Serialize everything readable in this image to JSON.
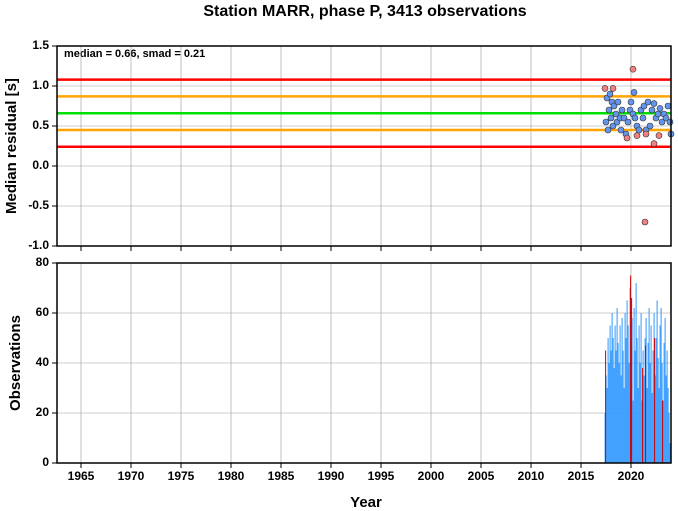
{
  "chart_data": [
    {
      "type": "scatter",
      "title": "Station MARR, phase P, 3413 observations",
      "y_label": "Median residual [s]",
      "annotation": "median = 0.66, smad = 0.21",
      "xlim": [
        1962.6,
        2024
      ],
      "xticks": [
        1965,
        1970,
        1975,
        1980,
        1985,
        1990,
        1995,
        2000,
        2005,
        2010,
        2015,
        2020
      ],
      "ylim": [
        -1.0,
        1.5
      ],
      "yticks": [
        {
          "value": -1.0,
          "label": "-1.0"
        },
        -0.5,
        {
          "value": 0.0,
          "label": "0.0"
        },
        0.5,
        {
          "value": 1.0,
          "label": "1.0"
        },
        1.5
      ],
      "grid": true,
      "hlines": [
        {
          "value": 1.08,
          "color": "#ff0000"
        },
        {
          "value": 0.87,
          "color": "#ffa500"
        },
        {
          "value": 0.66,
          "color": "#00e000"
        },
        {
          "value": 0.45,
          "color": "#ffa500"
        },
        {
          "value": 0.24,
          "color": "#ff0000"
        }
      ],
      "series": [
        {
          "color": "#6495ed",
          "x": [
            2017.5,
            2017.6,
            2017.7,
            2017.8,
            2017.9,
            2018.0,
            2018.1,
            2018.2,
            2018.3,
            2018.5,
            2018.6,
            2018.7,
            2018.9,
            2019.0,
            2019.1,
            2019.3,
            2019.5,
            2019.7,
            2019.9,
            2020.0,
            2020.2,
            2020.3,
            2020.4,
            2020.6,
            2020.8,
            2021.0,
            2021.2,
            2021.3,
            2021.5,
            2021.7,
            2021.9,
            2022.1,
            2022.3,
            2022.5,
            2022.7,
            2022.9,
            2023.1,
            2023.3,
            2023.5,
            2023.7,
            2023.9,
            2024.0
          ],
          "values": [
            0.55,
            0.85,
            0.45,
            0.7,
            0.9,
            0.6,
            0.8,
            0.5,
            0.75,
            0.65,
            0.55,
            0.8,
            0.6,
            0.45,
            0.7,
            0.6,
            0.4,
            0.55,
            0.7,
            0.8,
            0.65,
            0.92,
            0.6,
            0.5,
            0.45,
            0.7,
            0.6,
            0.75,
            0.45,
            0.8,
            0.5,
            0.7,
            0.78,
            0.6,
            0.65,
            0.72,
            0.55,
            0.65,
            0.6,
            0.75,
            0.55,
            0.4
          ]
        },
        {
          "color": "#f08080",
          "x": [
            2017.4,
            2018.2,
            2019.6,
            2020.2,
            2020.6,
            2021.4,
            2021.5,
            2022.3,
            2022.8
          ],
          "values": [
            0.97,
            0.97,
            0.35,
            1.21,
            0.38,
            -0.7,
            0.4,
            0.28,
            0.38
          ]
        }
      ]
    },
    {
      "type": "bar",
      "y_label": "Observations",
      "x_label": "Year",
      "xlim": [
        1962.6,
        2024
      ],
      "xticks": [
        1965,
        1970,
        1975,
        1980,
        1985,
        1990,
        1995,
        2000,
        2005,
        2010,
        2015,
        2020
      ],
      "ylim": [
        0,
        80
      ],
      "yticks": [
        0,
        20,
        40,
        60,
        80
      ],
      "grid": true,
      "bar_width": 0.08,
      "series": [
        {
          "color": "#3399ff",
          "x": [
            2017.4,
            2017.5,
            2017.6,
            2017.7,
            2017.8,
            2017.9,
            2018.0,
            2018.1,
            2018.2,
            2018.3,
            2018.4,
            2018.5,
            2018.6,
            2018.7,
            2018.8,
            2018.9,
            2019.0,
            2019.1,
            2019.2,
            2019.3,
            2019.4,
            2019.5,
            2019.6,
            2019.7,
            2019.8,
            2019.9,
            2020.0,
            2020.1,
            2020.2,
            2020.3,
            2020.4,
            2020.5,
            2020.6,
            2020.7,
            2020.8,
            2020.9,
            2021.0,
            2021.1,
            2021.2,
            2021.3,
            2021.4,
            2021.5,
            2021.6,
            2021.7,
            2021.8,
            2021.9,
            2022.0,
            2022.1,
            2022.2,
            2022.3,
            2022.4,
            2022.5,
            2022.6,
            2022.7,
            2022.8,
            2022.9,
            2023.0,
            2023.1,
            2023.2,
            2023.3,
            2023.4,
            2023.5,
            2023.6,
            2023.7,
            2023.8,
            2023.9
          ],
          "values": [
            20,
            35,
            30,
            50,
            40,
            55,
            45,
            60,
            50,
            38,
            55,
            45,
            62,
            48,
            40,
            55,
            35,
            58,
            45,
            30,
            60,
            50,
            65,
            55,
            40,
            70,
            48,
            58,
            25,
            62,
            45,
            72,
            50,
            30,
            55,
            40,
            60,
            25,
            45,
            35,
            50,
            58,
            30,
            48,
            62,
            40,
            55,
            28,
            45,
            60,
            35,
            50,
            65,
            42,
            30,
            55,
            62,
            40,
            25,
            48,
            58,
            35,
            45,
            30,
            20,
            8
          ]
        },
        {
          "color": "#cc0000",
          "x": [
            2017.45,
            2019.95,
            2020.05,
            2021.15,
            2021.45,
            2022.35,
            2023.15
          ],
          "values": [
            45,
            75,
            66,
            38,
            47,
            50,
            25
          ]
        }
      ]
    }
  ]
}
